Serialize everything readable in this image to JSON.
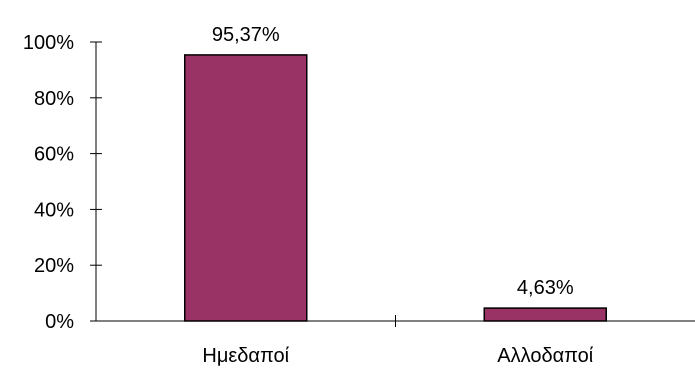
{
  "chart_data": {
    "type": "bar",
    "title": "",
    "xlabel": "",
    "ylabel": "",
    "categories": [
      "Ημεδαποί",
      "Αλλοδαποί"
    ],
    "values": [
      95.37,
      4.63
    ],
    "data_labels": [
      "95,37%",
      "4,63%"
    ],
    "ylim": [
      0,
      100
    ],
    "yticks": [
      0,
      20,
      40,
      60,
      80,
      100
    ],
    "ytick_labels": [
      "0%",
      "20%",
      "40%",
      "60%",
      "80%",
      "100%"
    ],
    "grid": false,
    "legend": "none",
    "bar_color": "#993366",
    "bar_edge_color": "#000000"
  }
}
